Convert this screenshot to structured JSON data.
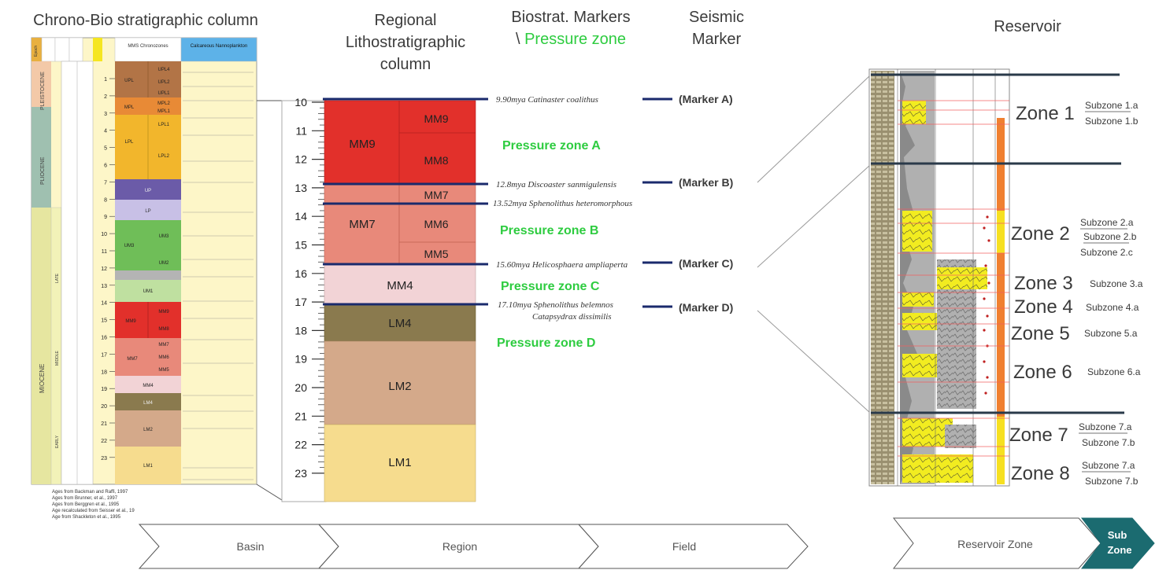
{
  "headers": {
    "chrono": "Chrono-Bio stratigraphic column",
    "regional_l1": "Regional",
    "regional_l2": "Lithostratigraphic",
    "regional_l3": "column",
    "biostrat_l1": "Biostrat. Markers",
    "biostrat_l2_prefix": "\\",
    "biostrat_l2_green": "Pressure zone",
    "seismic_l1": "Seismic",
    "seismic_l2": "Marker",
    "reservoir": "Reservoir"
  },
  "colors": {
    "mm_red": "#e2302b",
    "mm7_salmon": "#e8897a",
    "mm4_pink": "#f2d3d6",
    "lm4_olive": "#8a7a4e",
    "lm2_tan": "#d4a98a",
    "lm1_yellow": "#f6dc8e",
    "marker_line": "#1a2a6c",
    "pressure_green": "#2ecc40",
    "subzone_teal": "#1b6b70"
  },
  "chrono_column": {
    "epochs": [
      "PLEISTOCENE",
      "PLIOCENE",
      "MIOCENE"
    ],
    "sub_epochs": [
      "LATE",
      "MIDDLE",
      "EARLY"
    ],
    "column_headers": [
      "Epoch",
      "Standard Foram Zones",
      "Standard Nanno Zones",
      "MMS Chronozones",
      "Calcareous Nannoplankton"
    ],
    "chronozones": [
      "UPL",
      "UPL4",
      "UPL3",
      "UPL2",
      "UPL1",
      "MPL",
      "MPL2",
      "MPL1",
      "LPL",
      "LPL1",
      "LPL2",
      "UP",
      "LP",
      "UM3",
      "UM2",
      "UM1",
      "MM9",
      "MM8",
      "MM7",
      "MM6",
      "MM5",
      "MM4",
      "LM4",
      "LM2",
      "LM1"
    ],
    "ages": [
      "1",
      "2",
      "3",
      "4",
      "5",
      "6",
      "7",
      "8",
      "9",
      "10",
      "11",
      "12",
      "13",
      "14",
      "15",
      "16",
      "17",
      "18",
      "19",
      "20",
      "21",
      "22",
      "23"
    ],
    "footnotes": [
      "Ages from Backman and Raffi, 1997",
      "Ages from Brunner, et al., 1997",
      "Ages from Berggren et al., 1995",
      "Age recalculated from Seisser et al., 19",
      "Age from Shackleton et al., 1995"
    ]
  },
  "regional_column": {
    "ticks": [
      "10",
      "11",
      "12",
      "13",
      "14",
      "15",
      "16",
      "17",
      "18",
      "19",
      "20",
      "21",
      "22",
      "23"
    ],
    "units": [
      {
        "label": "MM9",
        "sub": [
          "MM9",
          "MM8"
        ]
      },
      {
        "label": "MM7",
        "sub": [
          "MM7",
          "MM6",
          "MM5"
        ]
      },
      {
        "label": "MM4"
      },
      {
        "label": "LM4"
      },
      {
        "label": "LM2"
      },
      {
        "label": "LM1"
      }
    ]
  },
  "biostrat_markers": [
    "9.90mya Catinaster coalithus",
    "12.8mya Discoaster sanmigulensis",
    "13.52mya Sphenolithus heteromorphous",
    "15.60mya Helicosphaera ampliaperta",
    "17.10mya Sphenolithus belemnos",
    "Catapsydrax dissimilis"
  ],
  "pressure_zones": [
    "Pressure zone A",
    "Pressure zone B",
    "Pressure zone C",
    "Pressure zone D"
  ],
  "seismic_markers": [
    "(Marker A)",
    "(Marker B)",
    "(Marker C)",
    "(Marker D)"
  ],
  "zones": [
    {
      "zone": "Zone 1",
      "subzones": [
        "Subzone 1.a",
        "Subzone 1.b"
      ]
    },
    {
      "zone": "Zone 2",
      "subzones": [
        "Subzone 2.a",
        "Subzone 2.b",
        "Subzone 2.c"
      ]
    },
    {
      "zone": "Zone 3",
      "subzones": [
        "Subzone 3.a"
      ]
    },
    {
      "zone": "Zone 4",
      "subzones": [
        "Subzone 4.a"
      ]
    },
    {
      "zone": "Zone 5",
      "subzones": [
        "Subzone 5.a"
      ]
    },
    {
      "zone": "Zone 6",
      "subzones": [
        "Subzone 6.a"
      ]
    },
    {
      "zone": "Zone 7",
      "subzones": [
        "Subzone 7.a",
        "Subzone 7.b"
      ]
    },
    {
      "zone": "Zone 8",
      "subzones": [
        "Subzone 7.a",
        "Subzone 7.b"
      ]
    }
  ],
  "scale_arrows": [
    "Basin",
    "Region",
    "Field",
    "Reservoir Zone"
  ],
  "subzone_badge": [
    "Sub",
    "Zone"
  ]
}
